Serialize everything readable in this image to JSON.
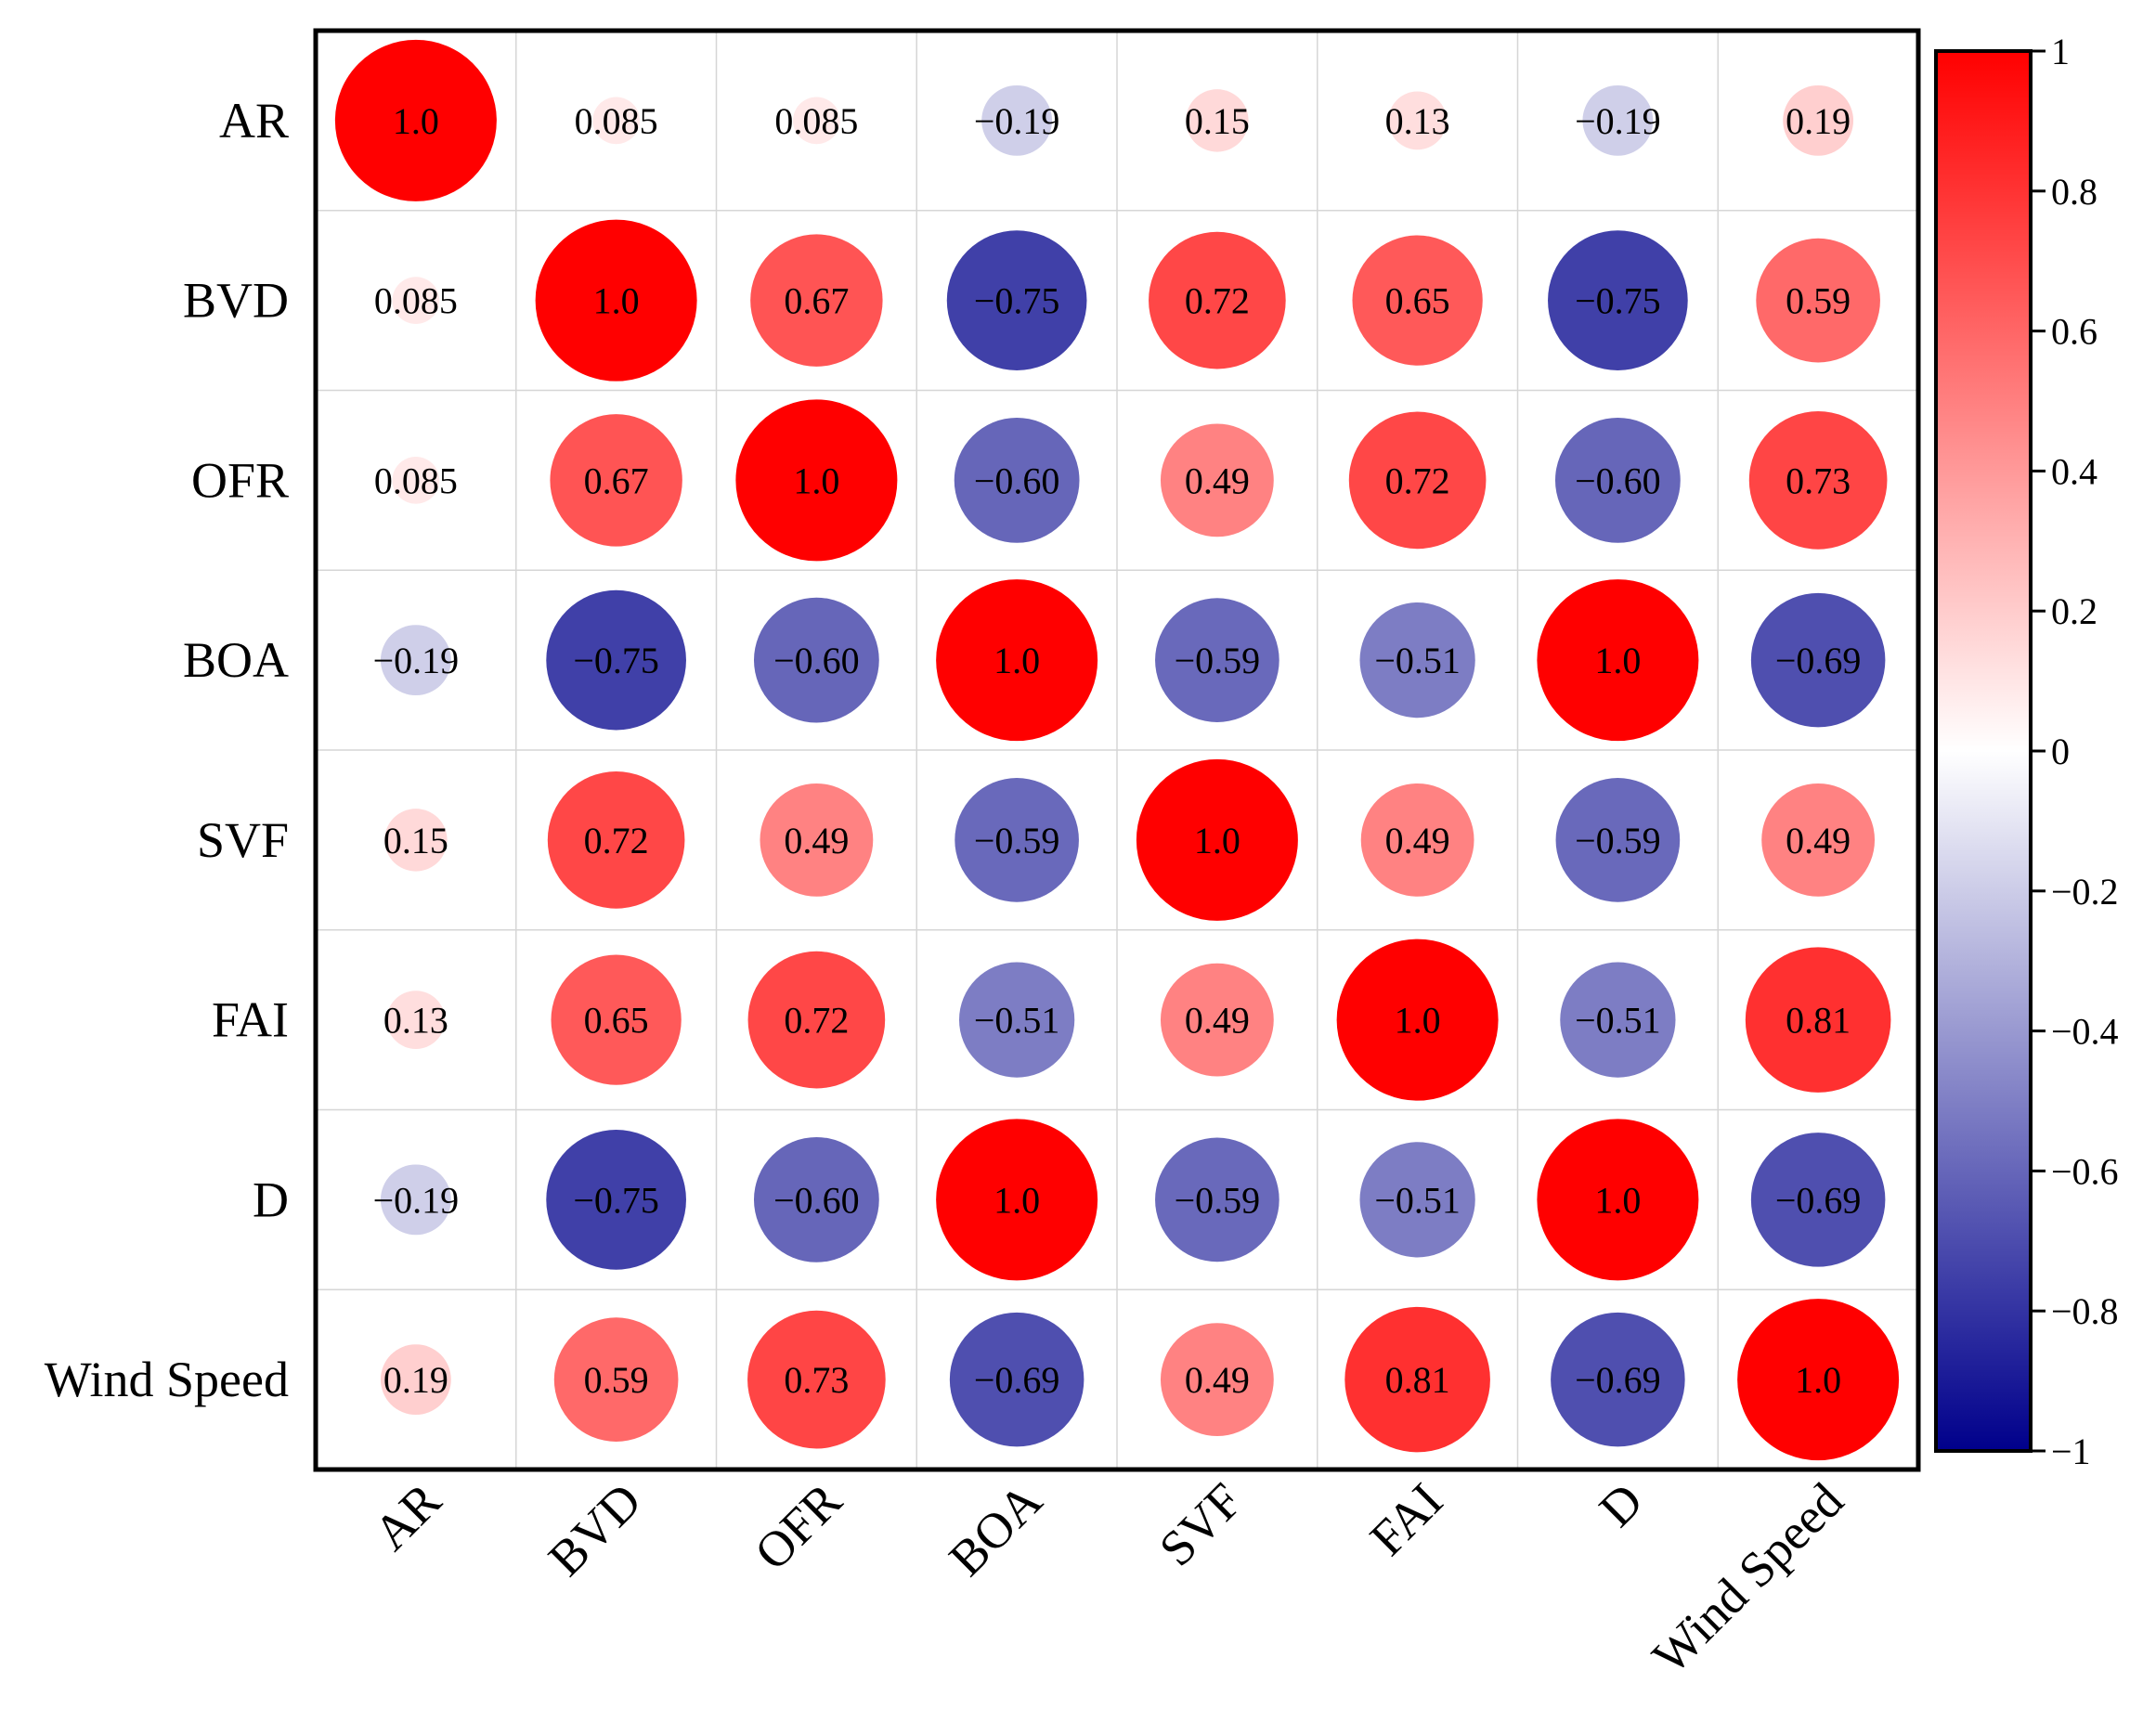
{
  "chart_data": {
    "type": "heatmap",
    "variant": "correlation-circle-matrix",
    "title": "",
    "xlabel": "",
    "ylabel": "",
    "variables": [
      "AR",
      "BVD",
      "OFR",
      "BOA",
      "SVF",
      "FAI",
      "D",
      "Wind Speed"
    ],
    "values": [
      [
        1.0,
        0.085,
        0.085,
        -0.19,
        0.15,
        0.13,
        -0.19,
        0.19
      ],
      [
        0.085,
        1.0,
        0.67,
        -0.75,
        0.72,
        0.65,
        -0.75,
        0.59
      ],
      [
        0.085,
        0.67,
        1.0,
        -0.6,
        0.49,
        0.72,
        -0.6,
        0.73
      ],
      [
        -0.19,
        -0.75,
        -0.6,
        1.0,
        -0.59,
        -0.51,
        1.0,
        -0.69
      ],
      [
        0.15,
        0.72,
        0.49,
        -0.59,
        1.0,
        0.49,
        -0.59,
        0.49
      ],
      [
        0.13,
        0.65,
        0.72,
        -0.51,
        0.49,
        1.0,
        -0.51,
        0.81
      ],
      [
        -0.19,
        -0.75,
        -0.6,
        1.0,
        -0.59,
        -0.51,
        1.0,
        -0.69
      ],
      [
        0.19,
        0.59,
        0.73,
        -0.69,
        0.49,
        0.81,
        -0.69,
        1.0
      ]
    ],
    "value_labels": [
      [
        "1.0",
        "0.085",
        "0.085",
        "−0.19",
        "0.15",
        "0.13",
        "−0.19",
        "0.19"
      ],
      [
        "0.085",
        "1.0",
        "0.67",
        "−0.75",
        "0.72",
        "0.65",
        "−0.75",
        "0.59"
      ],
      [
        "0.085",
        "0.67",
        "1.0",
        "−0.60",
        "0.49",
        "0.72",
        "−0.60",
        "0.73"
      ],
      [
        "−0.19",
        "−0.75",
        "−0.60",
        "1.0",
        "−0.59",
        "−0.51",
        "1.0",
        "−0.69"
      ],
      [
        "0.15",
        "0.72",
        "0.49",
        "−0.59",
        "1.0",
        "0.49",
        "−0.59",
        "0.49"
      ],
      [
        "0.13",
        "0.65",
        "0.72",
        "−0.51",
        "0.49",
        "1.0",
        "−0.51",
        "0.81"
      ],
      [
        "−0.19",
        "−0.75",
        "−0.60",
        "1.0",
        "−0.59",
        "−0.51",
        "1.0",
        "−0.69"
      ],
      [
        "0.19",
        "0.59",
        "0.73",
        "−0.69",
        "0.49",
        "0.81",
        "−0.69",
        "1.0"
      ]
    ],
    "colorbar": {
      "range": [
        -1,
        1
      ],
      "ticks": [
        1,
        0.8,
        0.6,
        0.4,
        0.2,
        0,
        -0.2,
        -0.4,
        -0.6,
        -0.8,
        -1
      ],
      "tick_labels": [
        "1",
        "0.8",
        "0.6",
        "0.4",
        "0.2",
        "0",
        "−0.2",
        "−0.4",
        "−0.6",
        "−0.8",
        "−1"
      ],
      "color_min": "#00008b",
      "color_mid": "#ffffff",
      "color_max": "#ff0000"
    },
    "grid": true,
    "legend": "right"
  }
}
